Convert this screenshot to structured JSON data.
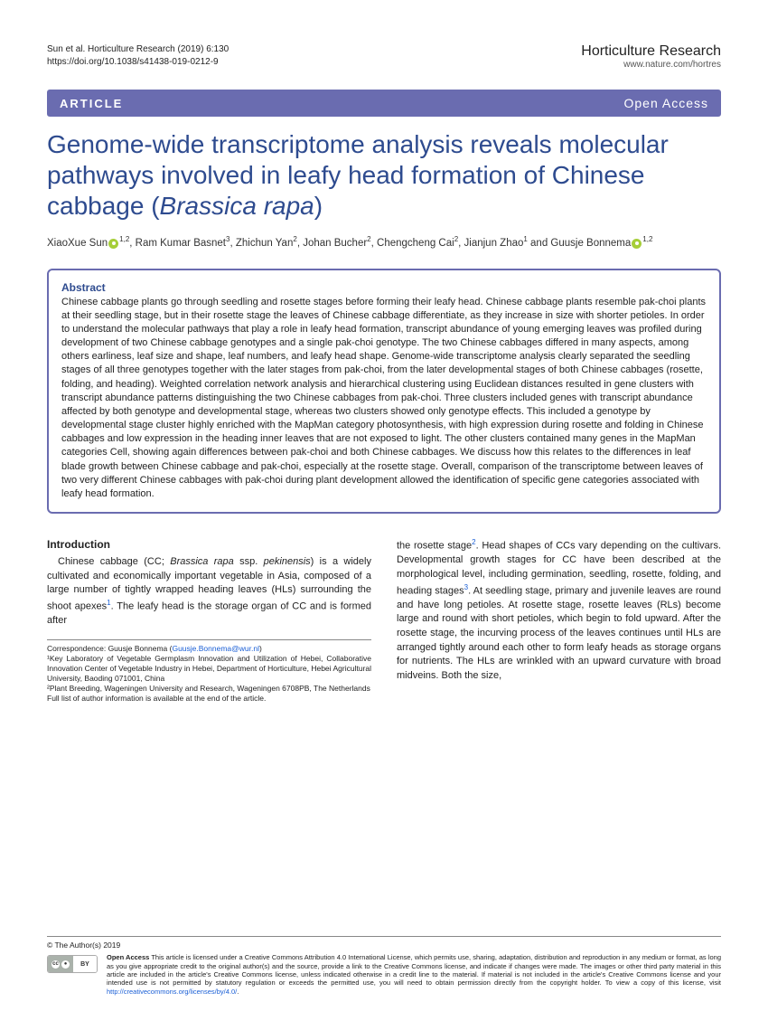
{
  "header": {
    "citation": "Sun et al. Horticulture Research (2019) 6:130",
    "doi": "https://doi.org/10.1038/s41438-019-0212-9",
    "journal": "Horticulture Research",
    "journal_url": "www.nature.com/hortres"
  },
  "banner": {
    "left": "ARTICLE",
    "right": "Open Access"
  },
  "title_html": "Genome-wide transcriptome analysis reveals molecular pathways involved in leafy head formation of Chinese cabbage (<em>Brassica rapa</em>)",
  "authors_html": "XiaoXue Sun<span class=\"orcid\" data-name=\"orcid-icon\" data-interactable=\"false\"></span><sup>1,2</sup>, Ram Kumar Basnet<sup>3</sup>, Zhichun Yan<sup>2</sup>, Johan Bucher<sup>2</sup>, Chengcheng Cai<sup>2</sup>, Jianjun Zhao<sup>1</sup> and Guusje Bonnema<span class=\"orcid\" data-name=\"orcid-icon\" data-interactable=\"false\"></span><sup>1,2</sup>",
  "abstract": {
    "heading": "Abstract",
    "text": "Chinese cabbage plants go through seedling and rosette stages before forming their leafy head. Chinese cabbage plants resemble pak-choi plants at their seedling stage, but in their rosette stage the leaves of Chinese cabbage differentiate, as they increase in size with shorter petioles. In order to understand the molecular pathways that play a role in leafy head formation, transcript abundance of young emerging leaves was profiled during development of two Chinese cabbage genotypes and a single pak-choi genotype. The two Chinese cabbages differed in many aspects, among others earliness, leaf size and shape, leaf numbers, and leafy head shape. Genome-wide transcriptome analysis clearly separated the seedling stages of all three genotypes together with the later stages from pak-choi, from the later developmental stages of both Chinese cabbages (rosette, folding, and heading). Weighted correlation network analysis and hierarchical clustering using Euclidean distances resulted in gene clusters with transcript abundance patterns distinguishing the two Chinese cabbages from pak-choi. Three clusters included genes with transcript abundance affected by both genotype and developmental stage, whereas two clusters showed only genotype effects. This included a genotype by developmental stage cluster highly enriched with the MapMan category photosynthesis, with high expression during rosette and folding in Chinese cabbages and low expression in the heading inner leaves that are not exposed to light. The other clusters contained many genes in the MapMan categories Cell, showing again differences between pak-choi and both Chinese cabbages. We discuss how this relates to the differences in leaf blade growth between Chinese cabbage and pak-choi, especially at the rosette stage. Overall, comparison of the transcriptome between leaves of two very different Chinese cabbages with pak-choi during plant development allowed the identification of specific gene categories associated with leafy head formation."
  },
  "body": {
    "intro_heading": "Introduction",
    "intro_col1_html": "Chinese cabbage (CC; <em>Brassica rapa</em> ssp. <em>pekinensis</em>) is a widely cultivated and economically important vegetable in Asia, composed of a large number of tightly wrapped heading leaves (HLs) surrounding the shoot apexes<sup class=\"ref\">1</sup>. The leafy head is the storage organ of CC and is formed after",
    "intro_col2_html": "the rosette stage<sup class=\"ref\">2</sup>. Head shapes of CCs vary depending on the cultivars. Developmental growth stages for CC have been described at the morphological level, including germination, seedling, rosette, folding, and heading stages<sup class=\"ref\">3</sup>. At seedling stage, primary and juvenile leaves are round and have long petioles. At rosette stage, rosette leaves (RLs) become large and round with short petioles, which begin to fold upward. After the rosette stage, the incurving process of the leaves continues until HLs are arranged tightly around each other to form leafy heads as storage organs for nutrients. The HLs are wrinkled with an upward curvature with broad midveins. Both the size,"
  },
  "correspondence": {
    "label": "Correspondence: Guusje Bonnema (",
    "email": "Guusje.Bonnema@wur.nl",
    "label_end": ")",
    "affil1": "¹Key Laboratory of Vegetable Germplasm Innovation and Utilization of Hebei, Collaborative Innovation Center of Vegetable Industry in Hebei, Department of Horticulture, Hebei Agricultural University, Baoding 071001, China",
    "affil2": "²Plant Breeding, Wageningen University and Research, Wageningen 6708PB, The Netherlands",
    "full_list": "Full list of author information is available at the end of the article."
  },
  "footer": {
    "copyright": "© The Author(s) 2019",
    "oa_bold": "Open Access",
    "oa_text": " This article is licensed under a Creative Commons Attribution 4.0 International License, which permits use, sharing, adaptation, distribution and reproduction in any medium or format, as long as you give appropriate credit to the original author(s) and the source, provide a link to the Creative Commons license, and indicate if changes were made. The images or other third party material in this article are included in the article's Creative Commons license, unless indicated otherwise in a credit line to the material. If material is not included in the article's Creative Commons license and your intended use is not permitted by statutory regulation or exceeds the permitted use, you will need to obtain permission directly from the copyright holder. To view a copy of this license, visit ",
    "oa_link": "http://creativecommons.org/licenses/by/4.0/",
    "cc_label": "CC",
    "by_label": "BY"
  },
  "colors": {
    "banner_bg": "#6a6cb0",
    "title": "#2e4b8f",
    "link": "#1a5fd6",
    "orcid": "#a6ce39"
  }
}
